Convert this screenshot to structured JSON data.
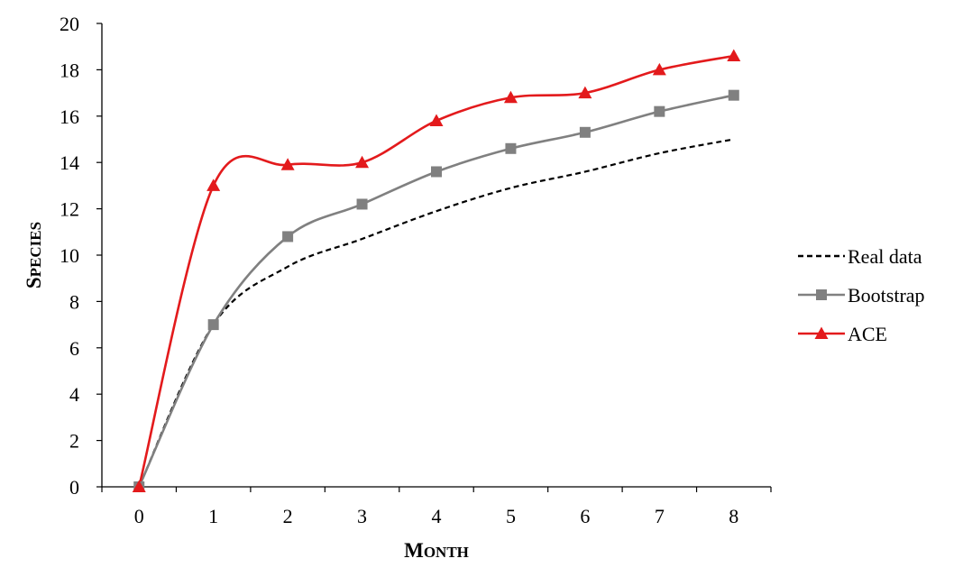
{
  "chart_data": {
    "type": "line",
    "title": "",
    "xlabel": {
      "cap": "M",
      "rest": "ONTH"
    },
    "ylabel": {
      "cap": "S",
      "rest": "PECIES"
    },
    "categories": [
      "0",
      "1",
      "2",
      "3",
      "4",
      "5",
      "6",
      "7",
      "8"
    ],
    "x": [
      0,
      1,
      2,
      3,
      4,
      5,
      6,
      7,
      8
    ],
    "ylim": [
      0,
      20
    ],
    "yticks": [
      0,
      2,
      4,
      6,
      8,
      10,
      12,
      14,
      16,
      18,
      20
    ],
    "grid": false,
    "smooth": true,
    "legend_position": "right",
    "series": [
      {
        "name": "Real data",
        "values": [
          0,
          7,
          9.5,
          10.7,
          11.9,
          12.9,
          13.6,
          14.4,
          15.0
        ],
        "color": "#000000",
        "dash": "dashed",
        "marker": "none"
      },
      {
        "name": "Bootstrap",
        "values": [
          0,
          7,
          10.8,
          12.2,
          13.6,
          14.6,
          15.3,
          16.2,
          16.9
        ],
        "color": "#808080",
        "dash": "solid",
        "marker": "square"
      },
      {
        "name": "ACE",
        "values": [
          0,
          13,
          13.9,
          14.0,
          15.8,
          16.8,
          17.0,
          18.0,
          18.6
        ],
        "color": "#e31a1c",
        "dash": "solid",
        "marker": "triangle"
      }
    ]
  }
}
